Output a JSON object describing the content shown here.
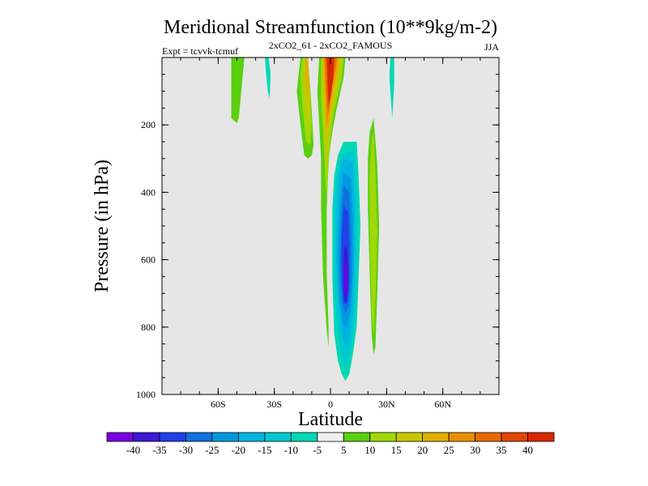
{
  "chart_data": {
    "type": "heatmap",
    "title": "Meridional Streamfunction (10**9kg/m-2)",
    "subtitle_left": "Expt = tcvvk-tcmuf",
    "subtitle_center": "2xCO2_61 - 2xCO2_FAMOUS",
    "subtitle_right": "JJA",
    "xlabel": "Latitude",
    "ylabel": "Pressure (in hPa)",
    "xlim": [
      -90,
      90
    ],
    "ylim": [
      1000,
      0
    ],
    "x_ticks": [
      {
        "value": -60,
        "label": "60S"
      },
      {
        "value": -30,
        "label": "30S"
      },
      {
        "value": 0,
        "label": "0"
      },
      {
        "value": 30,
        "label": "30N"
      },
      {
        "value": 60,
        "label": "60N"
      }
    ],
    "y_ticks": [
      {
        "value": 200,
        "label": "200"
      },
      {
        "value": 400,
        "label": "400"
      },
      {
        "value": 600,
        "label": "600"
      },
      {
        "value": 800,
        "label": "800"
      },
      {
        "value": 1000,
        "label": "1000"
      }
    ],
    "background_color": "#e6e6e6",
    "levels": [
      -40,
      -35,
      -30,
      -25,
      -20,
      -15,
      -10,
      -5,
      5,
      10,
      15,
      20,
      25,
      30,
      35,
      40
    ],
    "colorbar_colors": [
      "#7a00e0",
      "#3c18d8",
      "#2040e8",
      "#1070e0",
      "#0098e0",
      "#00b4e0",
      "#00c8d0",
      "#00d8b4",
      "#f0f0f0",
      "#5ad010",
      "#a0d808",
      "#c8c800",
      "#e0b000",
      "#e89000",
      "#e86a00",
      "#e04800",
      "#d82800"
    ],
    "colorbar_labels": [
      "-40",
      "-35",
      "-30",
      "-25",
      "-20",
      "-15",
      "-10",
      "-5",
      "5",
      "10",
      "15",
      "20",
      "25",
      "30",
      "35",
      "40"
    ],
    "regions": [
      {
        "name": "sh-positive-cell-outer",
        "value": 5,
        "color": "#5ad010",
        "points": [
          [
            -16,
            0
          ],
          [
            -12,
            0
          ],
          [
            -11,
            80
          ],
          [
            -10,
            160
          ],
          [
            -9,
            260
          ],
          [
            -10,
            290
          ],
          [
            -12,
            300
          ],
          [
            -14,
            290
          ],
          [
            -16,
            200
          ],
          [
            -18,
            100
          ]
        ]
      },
      {
        "name": "sh-positive-cell-10",
        "value": 10,
        "color": "#a0d808",
        "points": [
          [
            -15,
            0
          ],
          [
            -12,
            0
          ],
          [
            -11,
            100
          ],
          [
            -10,
            200
          ],
          [
            -11,
            260
          ],
          [
            -13,
            250
          ],
          [
            -15,
            150
          ],
          [
            -16,
            50
          ]
        ]
      },
      {
        "name": "sh-positive-cell-15",
        "value": 15,
        "color": "#c8c800",
        "points": [
          [
            -14,
            0
          ],
          [
            -12,
            0
          ],
          [
            -11,
            120
          ],
          [
            -12,
            200
          ],
          [
            -13,
            180
          ],
          [
            -14,
            90
          ]
        ]
      },
      {
        "name": "sh-positive-cell-20",
        "value": 20,
        "color": "#e0b000",
        "points": [
          [
            -13.5,
            0
          ],
          [
            -12,
            0
          ],
          [
            -11.5,
            80
          ],
          [
            -12.5,
            120
          ],
          [
            -13.5,
            60
          ]
        ]
      },
      {
        "name": "equatorial-positive-band",
        "value": 5,
        "color": "#5ad010",
        "points": [
          [
            -6,
            0
          ],
          [
            8,
            0
          ],
          [
            7,
            60
          ],
          [
            5,
            110
          ],
          [
            3,
            160
          ],
          [
            1,
            220
          ],
          [
            -1,
            300
          ],
          [
            -2,
            450
          ],
          [
            -2,
            650
          ],
          [
            -1,
            800
          ],
          [
            -1,
            860
          ],
          [
            -2,
            810
          ],
          [
            -4,
            650
          ],
          [
            -5,
            450
          ],
          [
            -5,
            300
          ],
          [
            -6,
            200
          ],
          [
            -7,
            100
          ]
        ]
      },
      {
        "name": "equatorial-positive-10",
        "value": 10,
        "color": "#a0d808",
        "points": [
          [
            -5,
            0
          ],
          [
            7,
            0
          ],
          [
            6,
            60
          ],
          [
            4,
            110
          ],
          [
            2,
            160
          ],
          [
            0,
            230
          ],
          [
            -1,
            320
          ],
          [
            -2,
            420
          ],
          [
            -3,
            340
          ],
          [
            -4,
            220
          ],
          [
            -5,
            120
          ]
        ]
      },
      {
        "name": "equatorial-positive-15",
        "value": 15,
        "color": "#c8c800",
        "points": [
          [
            -4.5,
            0
          ],
          [
            6,
            0
          ],
          [
            5,
            50
          ],
          [
            3,
            100
          ],
          [
            1,
            160
          ],
          [
            -1,
            240
          ],
          [
            -2,
            310
          ],
          [
            -3,
            230
          ],
          [
            -4,
            130
          ],
          [
            -4.5,
            60
          ]
        ]
      },
      {
        "name": "equatorial-positive-20",
        "value": 20,
        "color": "#e0b000",
        "points": [
          [
            -4,
            0
          ],
          [
            5,
            0
          ],
          [
            4,
            40
          ],
          [
            2,
            90
          ],
          [
            0,
            160
          ],
          [
            -1,
            220
          ],
          [
            -2.5,
            200
          ],
          [
            -3,
            120
          ],
          [
            -4,
            50
          ]
        ]
      },
      {
        "name": "equatorial-positive-25",
        "value": 25,
        "color": "#e89000",
        "points": [
          [
            -3.5,
            0
          ],
          [
            4,
            0
          ],
          [
            3,
            40
          ],
          [
            1,
            100
          ],
          [
            -1,
            160
          ],
          [
            -2,
            200
          ],
          [
            -2.5,
            120
          ],
          [
            -3,
            50
          ]
        ]
      },
      {
        "name": "equatorial-positive-30",
        "value": 30,
        "color": "#e86a00",
        "points": [
          [
            -3,
            0
          ],
          [
            3,
            0
          ],
          [
            2,
            50
          ],
          [
            0,
            110
          ],
          [
            -1,
            170
          ],
          [
            -2,
            140
          ],
          [
            -2.5,
            60
          ]
        ]
      },
      {
        "name": "equatorial-positive-40",
        "value": 40,
        "color": "#d82800",
        "points": [
          [
            -2,
            0
          ],
          [
            2,
            0
          ],
          [
            1.5,
            60
          ],
          [
            0,
            120
          ],
          [
            -1,
            140
          ],
          [
            -1.5,
            80
          ]
        ]
      },
      {
        "name": "nh-negative-cell-outer",
        "value": -5,
        "color": "#00d8b4",
        "points": [
          [
            7,
            250
          ],
          [
            14,
            250
          ],
          [
            15,
            350
          ],
          [
            16,
            500
          ],
          [
            15,
            650
          ],
          [
            14,
            800
          ],
          [
            12,
            880
          ],
          [
            10,
            940
          ],
          [
            8,
            960
          ],
          [
            6,
            940
          ],
          [
            4,
            900
          ],
          [
            2,
            820
          ],
          [
            1,
            650
          ],
          [
            1,
            450
          ],
          [
            2,
            350
          ],
          [
            4,
            290
          ]
        ]
      },
      {
        "name": "nh-negative-cell-10",
        "value": -10,
        "color": "#00c8d0",
        "points": [
          [
            7,
            280
          ],
          [
            13,
            280
          ],
          [
            14,
            400
          ],
          [
            14,
            600
          ],
          [
            13,
            780
          ],
          [
            11,
            860
          ],
          [
            9,
            910
          ],
          [
            7,
            910
          ],
          [
            5,
            860
          ],
          [
            3,
            760
          ],
          [
            2,
            600
          ],
          [
            2,
            430
          ],
          [
            4,
            330
          ]
        ]
      },
      {
        "name": "nh-negative-cell-15",
        "value": -15,
        "color": "#00b4e0",
        "points": [
          [
            7,
            300
          ],
          [
            12,
            310
          ],
          [
            13,
            450
          ],
          [
            13,
            620
          ],
          [
            12,
            760
          ],
          [
            10,
            840
          ],
          [
            8,
            860
          ],
          [
            6,
            820
          ],
          [
            4,
            720
          ],
          [
            3,
            560
          ],
          [
            4,
            400
          ],
          [
            5,
            330
          ]
        ]
      },
      {
        "name": "nh-negative-cell-20",
        "value": -20,
        "color": "#0098e0",
        "points": [
          [
            7,
            340
          ],
          [
            11,
            360
          ],
          [
            12,
            480
          ],
          [
            12,
            640
          ],
          [
            11,
            740
          ],
          [
            9,
            800
          ],
          [
            7,
            800
          ],
          [
            5,
            730
          ],
          [
            4,
            600
          ],
          [
            5,
            440
          ]
        ]
      },
      {
        "name": "nh-negative-cell-25",
        "value": -25,
        "color": "#1070e0",
        "points": [
          [
            7,
            380
          ],
          [
            10,
            400
          ],
          [
            11,
            520
          ],
          [
            11,
            660
          ],
          [
            10,
            730
          ],
          [
            8,
            760
          ],
          [
            6,
            720
          ],
          [
            5,
            600
          ],
          [
            6,
            460
          ]
        ]
      },
      {
        "name": "nh-negative-cell-30",
        "value": -30,
        "color": "#2040e8",
        "points": [
          [
            7,
            440
          ],
          [
            9.5,
            460
          ],
          [
            10,
            560
          ],
          [
            10,
            680
          ],
          [
            9,
            730
          ],
          [
            7,
            730
          ],
          [
            6,
            660
          ],
          [
            6,
            530
          ]
        ]
      },
      {
        "name": "nh-negative-cell-35",
        "value": -35,
        "color": "#3c18d8",
        "points": [
          [
            7.5,
            560
          ],
          [
            9,
            570
          ],
          [
            9.5,
            640
          ],
          [
            9,
            710
          ],
          [
            8,
            730
          ],
          [
            7,
            700
          ],
          [
            7,
            620
          ]
        ]
      },
      {
        "name": "nh-negative-cell-40",
        "value": -40,
        "color": "#7a00e0",
        "points": [
          [
            7.5,
            610
          ],
          [
            8.7,
            620
          ],
          [
            8.8,
            680
          ],
          [
            8.2,
            710
          ],
          [
            7.5,
            690
          ]
        ]
      },
      {
        "name": "nh-positive-sliver",
        "value": 5,
        "color": "#5ad010",
        "points": [
          [
            21,
            220
          ],
          [
            23,
            180
          ],
          [
            25,
            320
          ],
          [
            26,
            500
          ],
          [
            25,
            700
          ],
          [
            24,
            860
          ],
          [
            23,
            880
          ],
          [
            22,
            820
          ],
          [
            21,
            650
          ],
          [
            20,
            450
          ],
          [
            20,
            300
          ]
        ]
      },
      {
        "name": "nh-positive-sliver-10",
        "value": 10,
        "color": "#a0d808",
        "points": [
          [
            22,
            240
          ],
          [
            23,
            220
          ],
          [
            24,
            350
          ],
          [
            25,
            520
          ],
          [
            24,
            720
          ],
          [
            23,
            830
          ],
          [
            22,
            760
          ],
          [
            21,
            520
          ],
          [
            21,
            350
          ]
        ]
      },
      {
        "name": "sh-high-lat-positive",
        "value": 5,
        "color": "#5ad010",
        "points": [
          [
            -53,
            0
          ],
          [
            -46,
            0
          ],
          [
            -47,
            60
          ],
          [
            -48,
            120
          ],
          [
            -49,
            180
          ],
          [
            -50,
            195
          ],
          [
            -53,
            180
          ]
        ]
      },
      {
        "name": "sh-upper-negative-sliver",
        "value": -5,
        "color": "#00d8b4",
        "points": [
          [
            -35,
            0
          ],
          [
            -33,
            0
          ],
          [
            -32,
            50
          ],
          [
            -32.5,
            120
          ],
          [
            -33.5,
            100
          ],
          [
            -34.5,
            40
          ]
        ]
      },
      {
        "name": "nh-upper-negative-sliver",
        "value": -5,
        "color": "#00d8b4",
        "points": [
          [
            32,
            0
          ],
          [
            34,
            0
          ],
          [
            34,
            80
          ],
          [
            33,
            180
          ],
          [
            32.5,
            140
          ],
          [
            31.5,
            60
          ]
        ]
      }
    ]
  }
}
